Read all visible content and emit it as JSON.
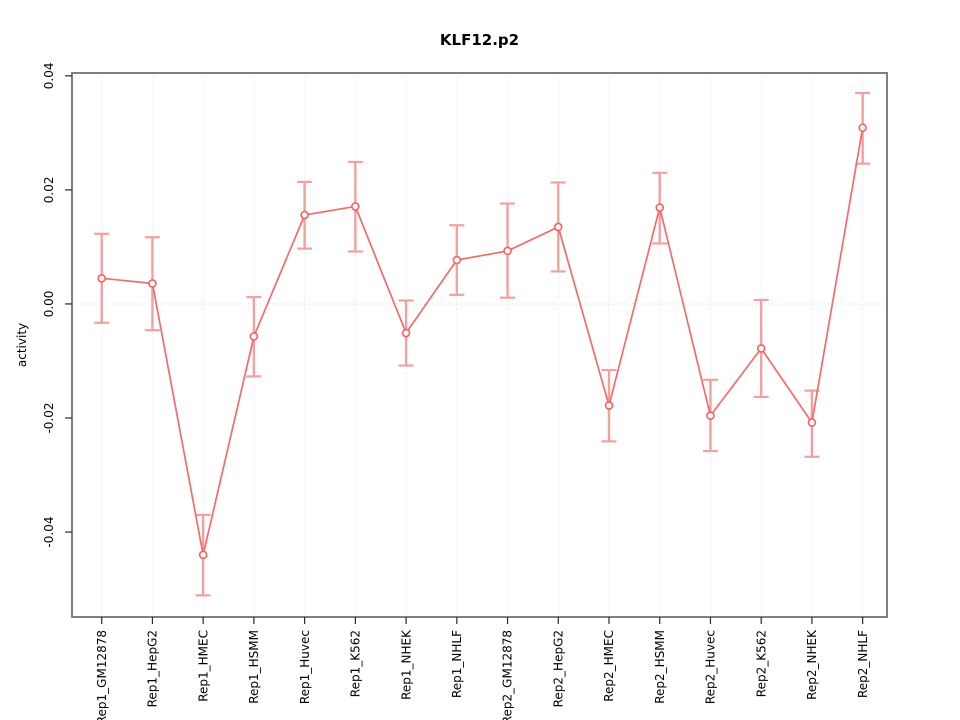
{
  "figure": {
    "title": "KLF12.p2"
  },
  "chart_data": {
    "type": "line",
    "title": "KLF12.p2",
    "xlabel": "",
    "ylabel": "activity",
    "legend": "none",
    "grid": "dotted vertical gridline at each category; dotted horizontal line at y=0",
    "categories": [
      "Rep1_GM12878",
      "Rep1_HepG2",
      "Rep1_HMEC",
      "Rep1_HSMM",
      "Rep1_Huvec",
      "Rep1_K562",
      "Rep1_NHEK",
      "Rep1_NHLF",
      "Rep2_GM12878",
      "Rep2_HepG2",
      "Rep2_HMEC",
      "Rep2_HSMM",
      "Rep2_Huvec",
      "Rep2_K562",
      "Rep2_NHEK",
      "Rep2_NHLF"
    ],
    "series": [
      {
        "name": "activity",
        "marker": "open-circle",
        "values": [
          0.0045,
          0.0036,
          -0.044,
          -0.0057,
          0.0156,
          0.0171,
          -0.0051,
          0.0077,
          0.0093,
          0.0135,
          -0.0178,
          0.0169,
          -0.0196,
          -0.0078,
          -0.0208,
          0.0309
        ],
        "upper": [
          0.0123,
          0.0117,
          -0.037,
          0.0012,
          0.0214,
          0.0249,
          0.0006,
          0.0138,
          0.0176,
          0.0213,
          -0.0116,
          0.023,
          -0.0133,
          0.0007,
          -0.0152,
          0.037
        ],
        "lower": [
          -0.0033,
          -0.0046,
          -0.0511,
          -0.0127,
          0.0097,
          0.0092,
          -0.0108,
          0.0016,
          0.0011,
          0.0057,
          -0.0241,
          0.0106,
          -0.0258,
          -0.0163,
          -0.0268,
          0.0246
        ]
      }
    ],
    "yticks": [
      -0.04,
      -0.02,
      0.0,
      0.02,
      0.04
    ],
    "ylim": [
      -0.0549,
      0.0405
    ],
    "colors": {
      "line": "#f56a6a",
      "point": "#f56060",
      "error_bar": "#f2a0a0",
      "grid": "#dadada",
      "zero_line": "#d4d4d4",
      "frame": "#808080",
      "tick": "#2b2b2b",
      "text": "#000000",
      "background": "#ffffff"
    }
  }
}
